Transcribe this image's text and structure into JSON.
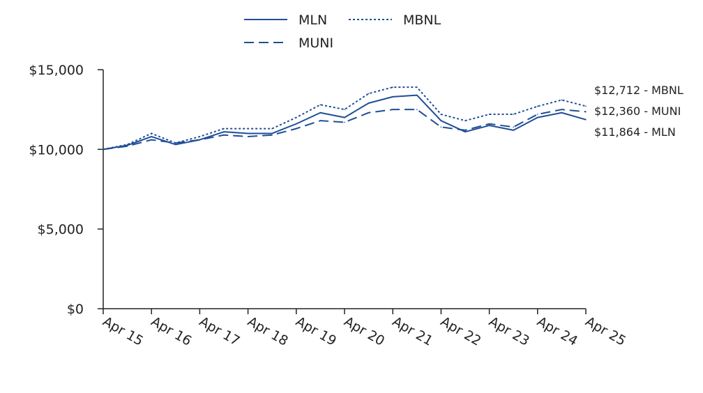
{
  "chart_data": {
    "type": "line",
    "x": [
      "Apr 15",
      "Oct 15",
      "Apr 16",
      "Oct 16",
      "Apr 17",
      "Oct 17",
      "Apr 18",
      "Oct 18",
      "Apr 19",
      "Oct 19",
      "Apr 20",
      "Oct 20",
      "Apr 21",
      "Oct 21",
      "Apr 22",
      "Oct 22",
      "Apr 23",
      "Oct 23",
      "Apr 24",
      "Oct 24",
      "Apr 25"
    ],
    "series": [
      {
        "name": "MLN",
        "style": "solid",
        "values": [
          10000,
          10250,
          10800,
          10300,
          10600,
          11100,
          11000,
          11000,
          11600,
          12300,
          12000,
          12900,
          13300,
          13400,
          11800,
          11100,
          11500,
          11200,
          12000,
          12300,
          11864
        ],
        "end_label": "$11,864 - MLN"
      },
      {
        "name": "MBNL",
        "style": "dotted",
        "values": [
          10000,
          10300,
          11000,
          10400,
          10800,
          11300,
          11300,
          11300,
          12000,
          12800,
          12500,
          13500,
          13900,
          13900,
          12200,
          11800,
          12200,
          12200,
          12700,
          13100,
          12712
        ],
        "end_label": "$12,712 - MBNL"
      },
      {
        "name": "MUNI",
        "style": "dashed",
        "values": [
          10000,
          10200,
          10600,
          10400,
          10600,
          10900,
          10800,
          10900,
          11300,
          11800,
          11700,
          12300,
          12500,
          12500,
          11400,
          11200,
          11600,
          11400,
          12200,
          12500,
          12360
        ],
        "end_label": "$12,360 - MUNI"
      }
    ],
    "x_ticks": [
      "Apr 15",
      "Apr 16",
      "Apr 17",
      "Apr 18",
      "Apr 19",
      "Apr 20",
      "Apr 21",
      "Apr 22",
      "Apr 23",
      "Apr 24",
      "Apr 25"
    ],
    "y_ticks": [
      "$0",
      "$5,000",
      "$10,000",
      "$15,000"
    ],
    "ylim": [
      0,
      15000
    ],
    "grid": false,
    "legend_position": "top-center",
    "colors": {
      "line": "#1f4e96",
      "axis": "#222222"
    }
  }
}
